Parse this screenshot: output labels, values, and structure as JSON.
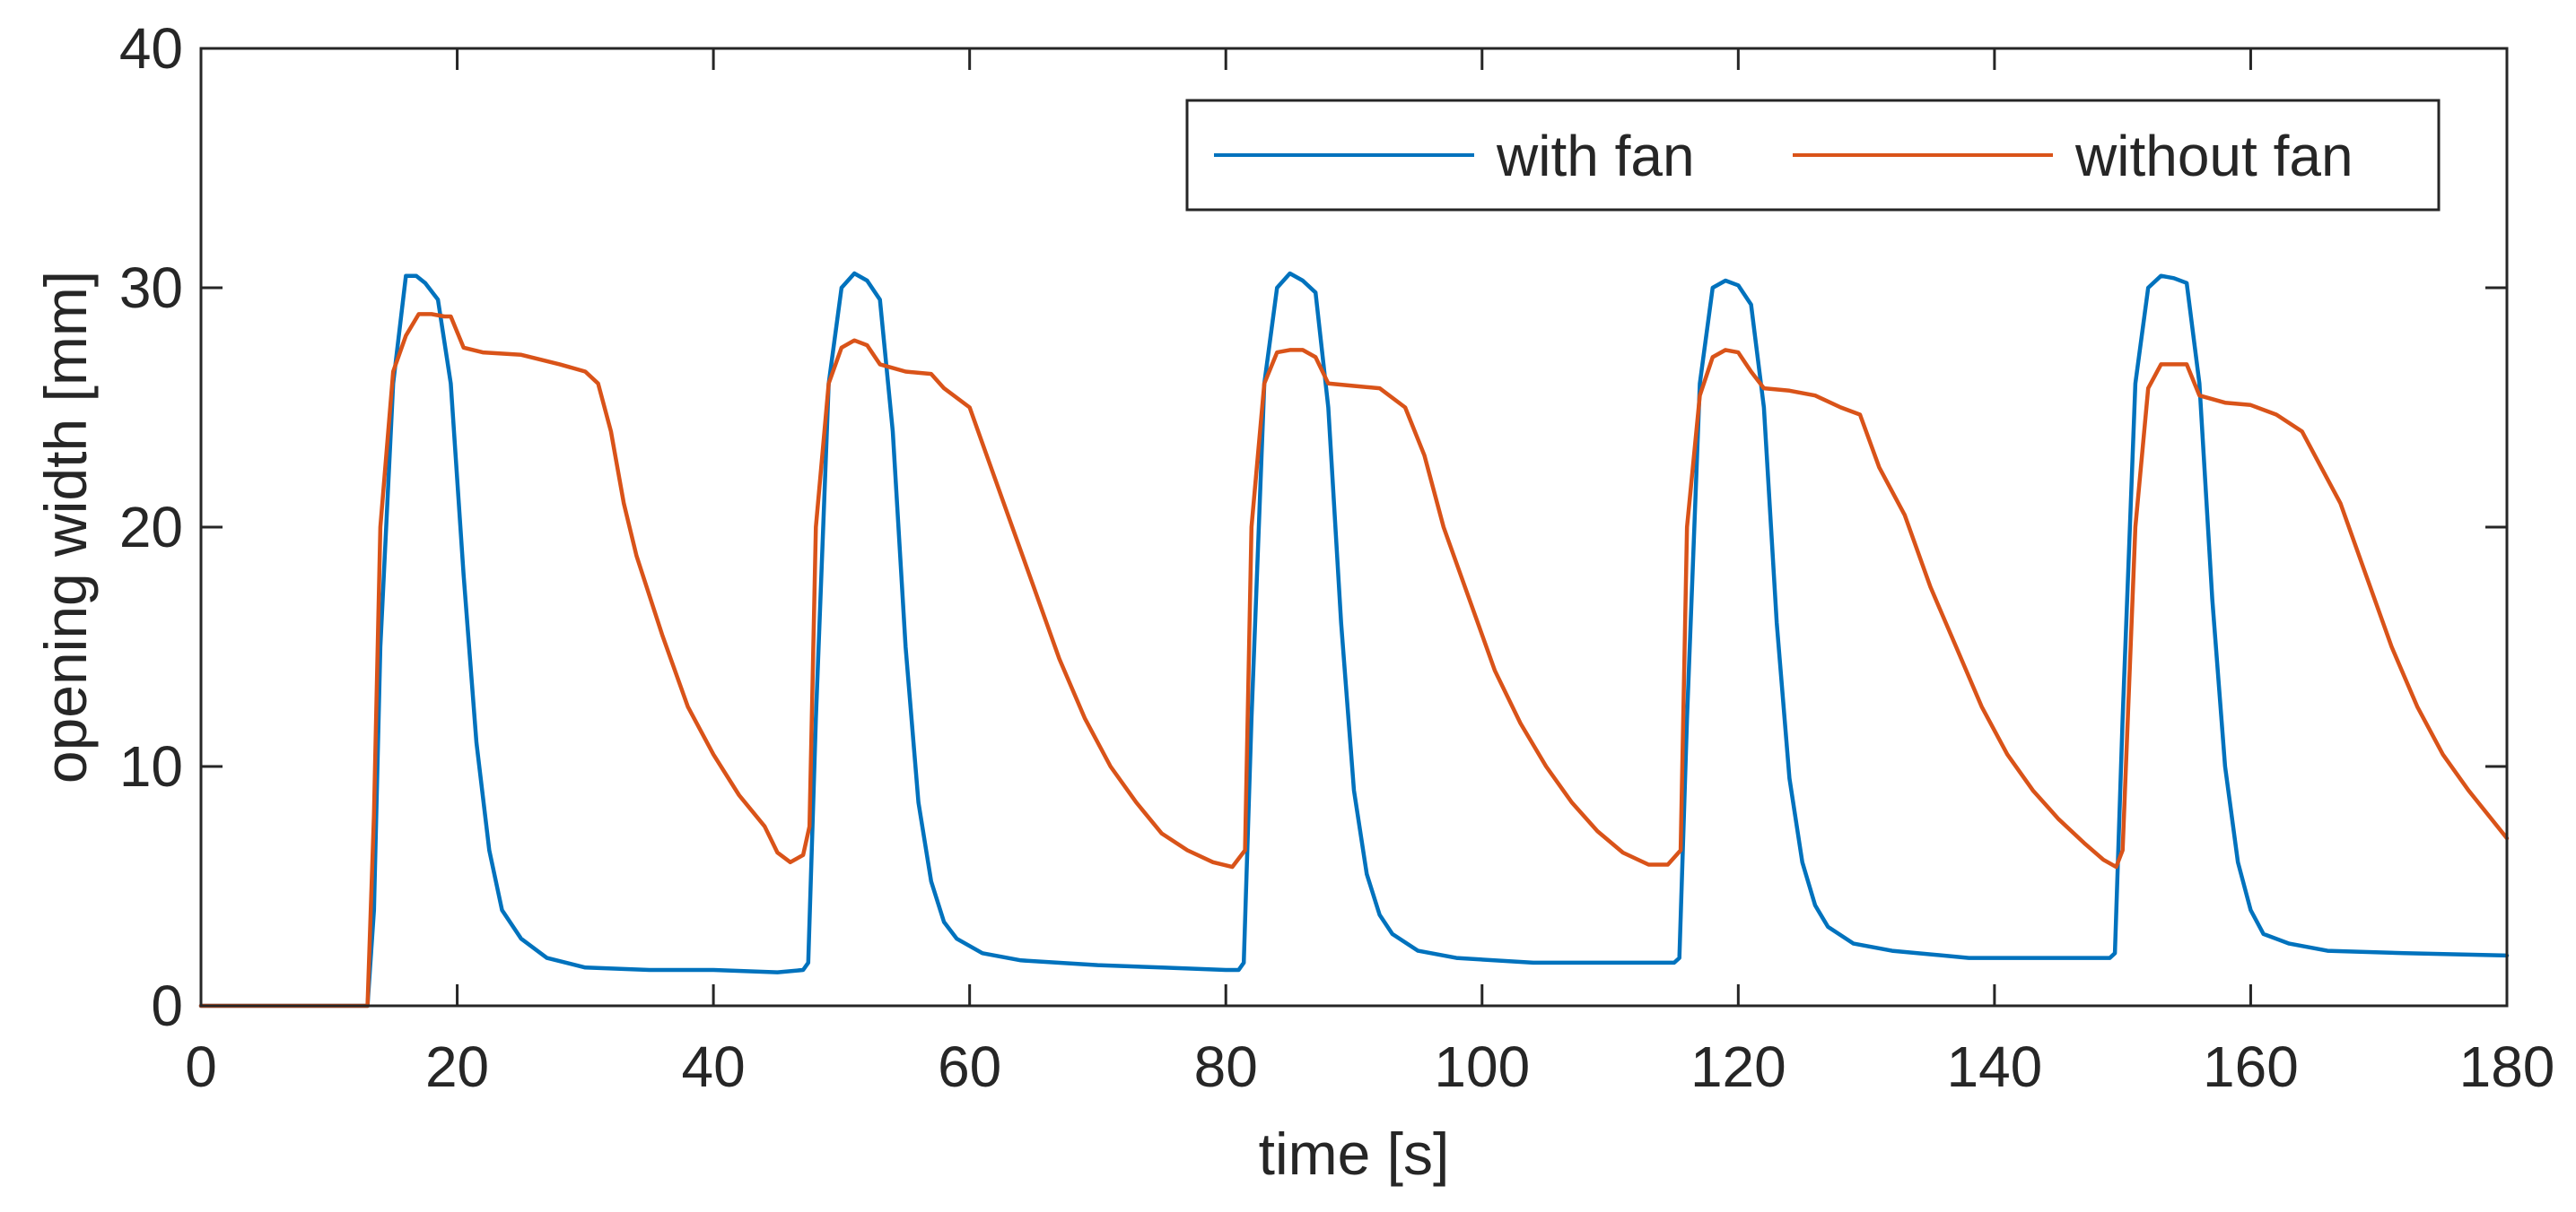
{
  "chart_data": {
    "type": "line",
    "title": "",
    "xlabel": "time [s]",
    "ylabel": "opening width [mm]",
    "xlim": [
      0,
      180
    ],
    "ylim": [
      0,
      40
    ],
    "xticks": [
      0,
      20,
      40,
      60,
      80,
      100,
      120,
      140,
      160,
      180
    ],
    "yticks": [
      0,
      10,
      20,
      30,
      40
    ],
    "legend_position": "top-right",
    "grid": false,
    "series": [
      {
        "name": "with fan",
        "color": "#0072BD",
        "x": [
          0,
          12,
          13,
          13.5,
          14,
          15,
          16,
          16.8,
          17.5,
          18.5,
          19.5,
          20.5,
          21.5,
          22.5,
          23.5,
          25,
          27,
          30,
          35,
          40,
          45,
          47,
          47.4,
          48,
          49,
          50,
          51,
          52,
          53,
          54,
          55,
          56,
          57,
          58,
          59,
          61,
          64,
          70,
          75,
          80,
          81,
          81.4,
          82,
          83,
          84,
          85,
          86,
          87,
          88,
          89,
          90,
          91,
          92,
          93,
          95,
          98,
          104,
          110,
          115,
          115.4,
          116,
          117,
          118,
          119,
          120,
          121,
          122,
          123,
          124,
          125,
          126,
          127,
          129,
          132,
          138,
          144,
          149,
          149.4,
          150,
          151,
          152,
          153,
          154,
          155,
          156,
          157,
          158,
          159,
          160,
          161,
          163,
          166,
          172,
          180
        ],
        "values": [
          0,
          0,
          0,
          4,
          15,
          26,
          30.5,
          30.5,
          30.2,
          29.5,
          26,
          18,
          11,
          6.5,
          4,
          2.8,
          2,
          1.6,
          1.5,
          1.5,
          1.4,
          1.5,
          1.8,
          12,
          26,
          30,
          30.6,
          30.3,
          29.5,
          24,
          15,
          8.5,
          5.2,
          3.5,
          2.8,
          2.2,
          1.9,
          1.7,
          1.6,
          1.5,
          1.5,
          1.8,
          12,
          26,
          30,
          30.6,
          30.3,
          29.8,
          25,
          16,
          9,
          5.5,
          3.8,
          3,
          2.3,
          2,
          1.8,
          1.8,
          1.8,
          2,
          12,
          26,
          30,
          30.3,
          30.1,
          29.3,
          25,
          16,
          9.5,
          6,
          4.2,
          3.3,
          2.6,
          2.3,
          2,
          2,
          2,
          2.2,
          12,
          26,
          30,
          30.5,
          30.4,
          30.2,
          26,
          17,
          10,
          6,
          4,
          3,
          2.6,
          2.3,
          2.2,
          2.1
        ]
      },
      {
        "name": "without fan",
        "color": "#D95319",
        "x": [
          0,
          13,
          13.5,
          14,
          15,
          16,
          17,
          18,
          19,
          19.5,
          20.5,
          22,
          25,
          28,
          30,
          31,
          32,
          33,
          34,
          36,
          38,
          40,
          42,
          44,
          45,
          46,
          47,
          47.5,
          48,
          49,
          50,
          51,
          52,
          53,
          55,
          57,
          58,
          60,
          61,
          63,
          65,
          67,
          69,
          71,
          73,
          75,
          77,
          79,
          80.5,
          81.5,
          82,
          83,
          84,
          85,
          86,
          87,
          88,
          90,
          92,
          94,
          95.5,
          97,
          99,
          101,
          103,
          105,
          107,
          109,
          111,
          113,
          114.5,
          115.5,
          116,
          117,
          118,
          119,
          120,
          121,
          122,
          124,
          126,
          128,
          129.5,
          131,
          133,
          135,
          137,
          139,
          141,
          143,
          145,
          147,
          148.5,
          149.5,
          150,
          151,
          152,
          153,
          154,
          155,
          156,
          158,
          160,
          162,
          164,
          165.5,
          167,
          169,
          171,
          173,
          175,
          177,
          180
        ],
        "values": [
          0,
          0,
          8,
          20,
          26.5,
          28,
          28.9,
          28.9,
          28.8,
          28.8,
          27.5,
          27.3,
          27.2,
          26.8,
          26.5,
          26,
          24,
          21,
          18.8,
          15.5,
          12.5,
          10.5,
          8.8,
          7.5,
          6.4,
          6,
          6.3,
          7.5,
          20,
          26,
          27.5,
          27.8,
          27.6,
          26.8,
          26.5,
          26.4,
          25.8,
          25,
          23.5,
          20.5,
          17.5,
          14.5,
          12,
          10,
          8.5,
          7.2,
          6.5,
          6,
          5.8,
          6.5,
          20,
          26,
          27.3,
          27.4,
          27.4,
          27.1,
          26,
          25.9,
          25.8,
          25,
          23,
          20,
          17,
          14,
          11.8,
          10,
          8.5,
          7.3,
          6.4,
          5.9,
          5.9,
          6.5,
          20,
          25.5,
          27.1,
          27.4,
          27.3,
          26.5,
          25.8,
          25.7,
          25.5,
          25,
          24.7,
          22.5,
          20.5,
          17.5,
          15,
          12.5,
          10.5,
          9,
          7.8,
          6.8,
          6.1,
          5.8,
          6.5,
          20,
          25.8,
          26.8,
          26.8,
          26.8,
          25.5,
          25.2,
          25.1,
          24.7,
          24,
          22.5,
          21,
          18,
          15,
          12.5,
          10.5,
          9,
          7
        ]
      }
    ]
  }
}
